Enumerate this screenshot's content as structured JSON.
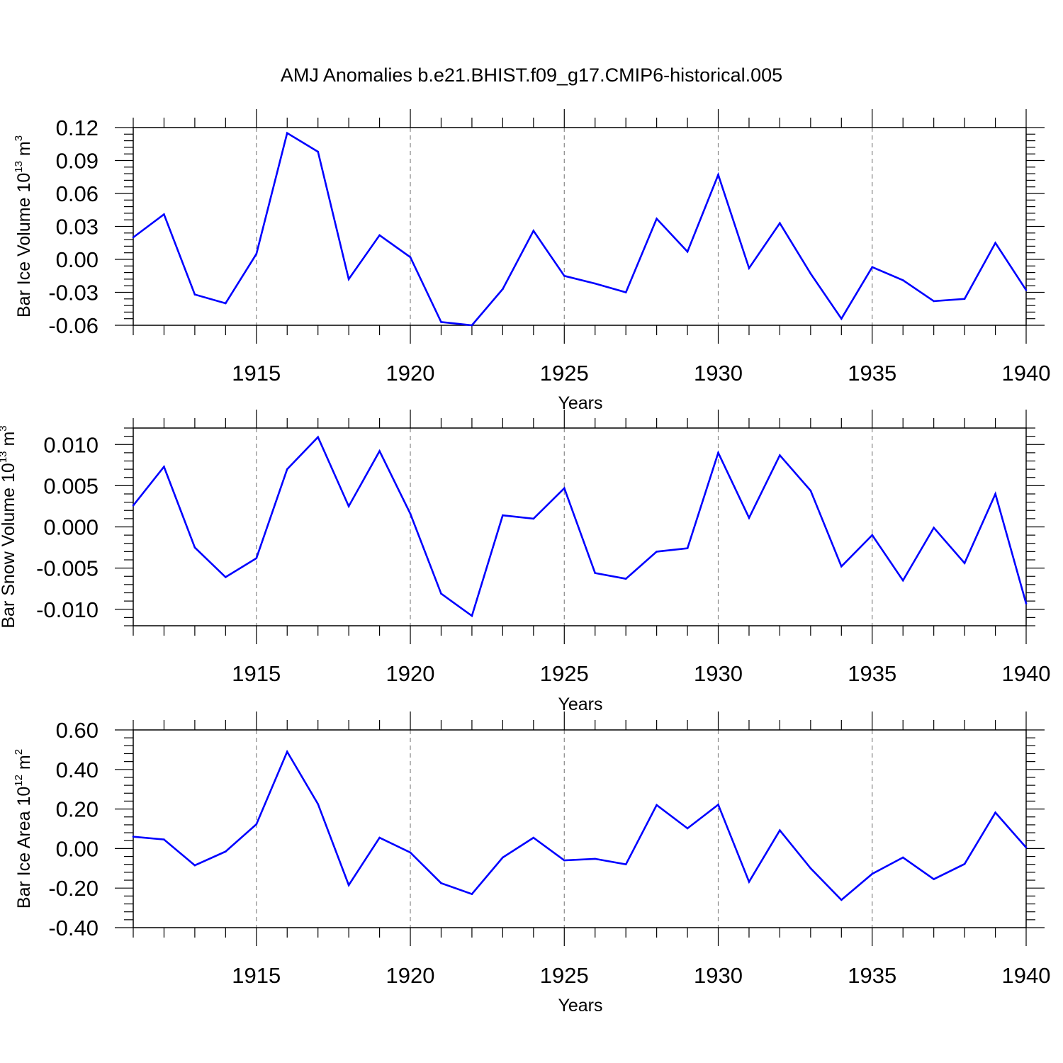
{
  "title": "AMJ Anomalies b.e21.BHIST.f09_g17.CMIP6-historical.005",
  "line_color": "#0000ff",
  "chart_data": [
    {
      "type": "line",
      "ylabel": "Bar Ice Volume 10",
      "ylabel_exp": "13",
      "ylabel_unit": " m",
      "ylabel_unit_exp": "3",
      "xlabel": "Years",
      "xlim": [
        1911,
        1940
      ],
      "ylim": [
        -0.06,
        0.12
      ],
      "yticks": [
        -0.06,
        -0.03,
        0.0,
        0.03,
        0.06,
        0.09,
        0.12
      ],
      "ytick_labels": [
        "-0.06",
        "-0.03",
        "0.00",
        "0.03",
        "0.06",
        "0.09",
        "0.12"
      ],
      "xticks": [
        1915,
        1920,
        1925,
        1930,
        1935,
        1940
      ],
      "xtick_labels": [
        "1915",
        "1920",
        "1925",
        "1930",
        "1935",
        "1940"
      ],
      "x": [
        1911,
        1912,
        1913,
        1914,
        1915,
        1916,
        1917,
        1918,
        1919,
        1920,
        1921,
        1922,
        1923,
        1924,
        1925,
        1926,
        1927,
        1928,
        1929,
        1930,
        1931,
        1932,
        1933,
        1934,
        1935,
        1936,
        1937,
        1938,
        1939,
        1940
      ],
      "values": [
        0.02,
        0.041,
        -0.032,
        -0.04,
        0.005,
        0.115,
        0.098,
        -0.018,
        0.022,
        0.002,
        -0.057,
        -0.06,
        -0.027,
        0.026,
        -0.015,
        -0.022,
        -0.03,
        0.037,
        0.007,
        0.077,
        -0.008,
        0.033,
        -0.013,
        -0.054,
        -0.007,
        -0.019,
        -0.038,
        -0.036,
        0.015,
        -0.028
      ]
    },
    {
      "type": "line",
      "ylabel": "Bar Snow Volume 10",
      "ylabel_exp": "13",
      "ylabel_unit": " m",
      "ylabel_unit_exp": "3",
      "xlabel": "Years",
      "xlim": [
        1911,
        1940
      ],
      "ylim": [
        -0.012,
        0.012
      ],
      "yticks": [
        -0.01,
        -0.005,
        0.0,
        0.005,
        0.01
      ],
      "ytick_labels": [
        "-0.010",
        "-0.005",
        "0.000",
        "0.005",
        "0.010"
      ],
      "xticks": [
        1915,
        1920,
        1925,
        1930,
        1935,
        1940
      ],
      "xtick_labels": [
        "1915",
        "1920",
        "1925",
        "1930",
        "1935",
        "1940"
      ],
      "x": [
        1911,
        1912,
        1913,
        1914,
        1915,
        1916,
        1917,
        1918,
        1919,
        1920,
        1921,
        1922,
        1923,
        1924,
        1925,
        1926,
        1927,
        1928,
        1929,
        1930,
        1931,
        1932,
        1933,
        1934,
        1935,
        1936,
        1937,
        1938,
        1939,
        1940
      ],
      "values": [
        0.0026,
        0.0073,
        -0.0025,
        -0.0061,
        -0.0038,
        0.007,
        0.0109,
        0.0025,
        0.0092,
        0.0016,
        -0.0081,
        -0.0108,
        0.0014,
        0.001,
        0.0047,
        -0.0056,
        -0.0063,
        -0.003,
        -0.0026,
        0.009,
        0.0011,
        0.0087,
        0.0044,
        -0.0048,
        -0.001,
        -0.0065,
        -0.0001,
        -0.0044,
        0.004,
        -0.0093
      ]
    },
    {
      "type": "line",
      "ylabel": "Bar Ice Area 10",
      "ylabel_exp": "12",
      "ylabel_unit": " m",
      "ylabel_unit_exp": "2",
      "xlabel": "Years",
      "xlim": [
        1911,
        1940
      ],
      "ylim": [
        -0.4,
        0.6
      ],
      "yticks": [
        -0.4,
        -0.2,
        0.0,
        0.2,
        0.4,
        0.6
      ],
      "ytick_labels": [
        "-0.40",
        "-0.20",
        "0.00",
        "0.20",
        "0.40",
        "0.60"
      ],
      "xticks": [
        1915,
        1920,
        1925,
        1930,
        1935,
        1940
      ],
      "xtick_labels": [
        "1915",
        "1920",
        "1925",
        "1930",
        "1935",
        "1940"
      ],
      "x": [
        1911,
        1912,
        1913,
        1914,
        1915,
        1916,
        1917,
        1918,
        1919,
        1920,
        1921,
        1922,
        1923,
        1924,
        1925,
        1926,
        1927,
        1928,
        1929,
        1930,
        1931,
        1932,
        1933,
        1934,
        1935,
        1936,
        1937,
        1938,
        1939,
        1940
      ],
      "values": [
        0.06,
        0.046,
        -0.085,
        -0.015,
        0.123,
        0.49,
        0.225,
        -0.185,
        0.055,
        -0.02,
        -0.175,
        -0.23,
        -0.045,
        0.055,
        -0.06,
        -0.052,
        -0.08,
        0.22,
        0.102,
        0.222,
        -0.168,
        0.092,
        -0.1,
        -0.26,
        -0.128,
        -0.045,
        -0.155,
        -0.078,
        0.182,
        0.005
      ]
    }
  ]
}
